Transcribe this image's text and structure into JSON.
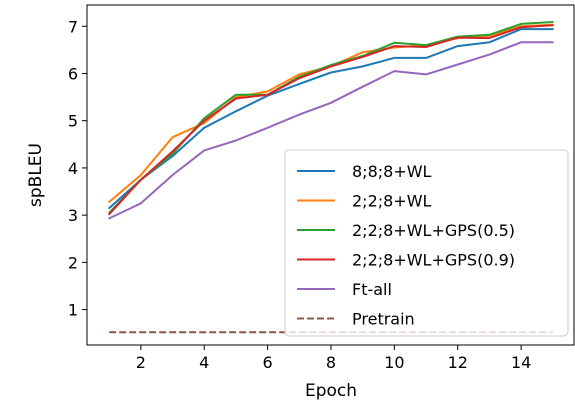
{
  "chart_data": {
    "type": "line",
    "xlabel": "Epoch",
    "ylabel": "spBLEU",
    "xlim": [
      0.3,
      15.7
    ],
    "ylim": [
      0.25,
      7.45
    ],
    "xticks": [
      2,
      4,
      6,
      8,
      10,
      12,
      14
    ],
    "yticks": [
      1,
      2,
      3,
      4,
      5,
      6,
      7
    ],
    "grid": false,
    "legend_position": "lower-right",
    "x": [
      1,
      2,
      3,
      4,
      5,
      6,
      7,
      8,
      9,
      10,
      11,
      12,
      13,
      14,
      15
    ],
    "series": [
      {
        "name": "8;8;8+WL",
        "color": "#1f77b4",
        "style": "solid",
        "values": [
          3.15,
          3.75,
          4.25,
          4.85,
          5.2,
          5.53,
          5.78,
          6.02,
          6.15,
          6.33,
          6.33,
          6.58,
          6.66,
          6.94,
          6.94
        ]
      },
      {
        "name": "2;2;8+WL",
        "color": "#ff7f0e",
        "style": "solid",
        "values": [
          3.28,
          3.85,
          4.65,
          4.95,
          5.5,
          5.62,
          5.98,
          6.15,
          6.45,
          6.55,
          6.6,
          6.75,
          6.8,
          7.0,
          7.03
        ]
      },
      {
        "name": "2;2;8+WL+GPS(0.5)",
        "color": "#2ca02c",
        "style": "solid",
        "values": [
          3.05,
          3.75,
          4.3,
          5.05,
          5.55,
          5.55,
          5.93,
          6.18,
          6.37,
          6.65,
          6.6,
          6.78,
          6.82,
          7.05,
          7.09
        ]
      },
      {
        "name": "2;2;8+WL+GPS(0.9)",
        "color": "#d62728",
        "style": "solid",
        "values": [
          3.02,
          3.75,
          4.35,
          5.0,
          5.47,
          5.55,
          5.9,
          6.15,
          6.35,
          6.58,
          6.56,
          6.76,
          6.75,
          6.98,
          7.02
        ]
      },
      {
        "name": "Ft-all",
        "color": "#9467bd",
        "style": "solid",
        "values": [
          2.93,
          3.25,
          3.85,
          4.37,
          4.58,
          4.85,
          5.13,
          5.38,
          5.72,
          6.05,
          5.98,
          6.19,
          6.4,
          6.66,
          6.66
        ]
      },
      {
        "name": "Pretrain",
        "color": "#8c564b",
        "style": "dashed",
        "values": [
          0.52,
          0.52,
          0.52,
          0.52,
          0.52,
          0.52,
          0.52,
          0.52,
          0.52,
          0.52,
          0.52,
          0.52,
          0.52,
          0.52,
          0.52
        ]
      }
    ]
  }
}
